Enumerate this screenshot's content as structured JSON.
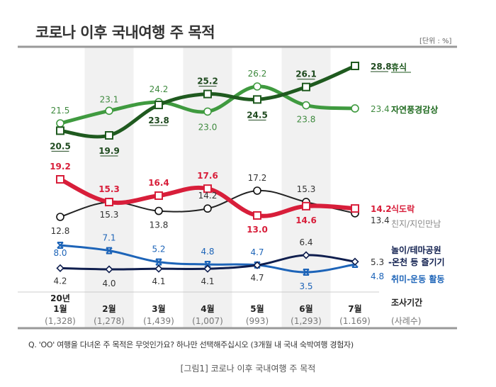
{
  "title": "코로나 이후 국내여행 주 목적",
  "unit": "[단위 : %]",
  "question": "Q. 'OO' 여행을 다녀온 주 목적은 무엇인가요? 하나만 선택해주십시오 (3개월 내 국내 숙박여행 경험자)",
  "caption": "[그림1] 코로나 이후 국내여행 주 목적",
  "colors": {
    "rest": "#1f5a1f",
    "nature": "#3f9a3f",
    "food": "#d81e3a",
    "friends": "#222222",
    "themepark": "#0f1e4e",
    "hobby": "#1d64b8",
    "shade": "#f1f1f1"
  },
  "chart_data": {
    "type": "line",
    "title": "코로나 이후 국내여행 주 목적",
    "ylabel": "%",
    "categories": [
      "20년\n1월",
      "2월",
      "3월",
      "4월",
      "5월",
      "6월",
      "7월"
    ],
    "category_labels": [
      {
        "top": "20년",
        "bottom": "1월"
      },
      {
        "top": "",
        "bottom": "2월"
      },
      {
        "top": "",
        "bottom": "3월"
      },
      {
        "top": "",
        "bottom": "4월"
      },
      {
        "top": "",
        "bottom": "5월"
      },
      {
        "top": "",
        "bottom": "6월"
      },
      {
        "top": "",
        "bottom": "7월"
      }
    ],
    "sample_sizes": [
      "(1,328)",
      "(1,278)",
      "(1,439)",
      "(1,007)",
      "(993)",
      "(1,293)",
      "(1.169)"
    ],
    "axis_title": "조사기간",
    "sample_title": "(사례수)",
    "series": [
      {
        "key": "rest",
        "name": "휴식",
        "marker": "square",
        "values": [
          20.5,
          19.9,
          23.8,
          25.2,
          24.5,
          26.1,
          28.8
        ],
        "label_style": "underline"
      },
      {
        "key": "nature",
        "name": "자연풍경감상",
        "marker": "circle",
        "values": [
          21.5,
          23.1,
          24.2,
          23.0,
          26.2,
          23.8,
          23.4
        ]
      },
      {
        "key": "food",
        "name": "식도락",
        "marker": "square",
        "values": [
          19.2,
          15.3,
          16.4,
          17.6,
          13.0,
          14.6,
          14.2
        ]
      },
      {
        "key": "friends",
        "name": "친지/지인만남",
        "marker": "circle",
        "values": [
          12.8,
          15.3,
          13.8,
          14.2,
          17.2,
          15.3,
          13.4
        ]
      },
      {
        "key": "themepark",
        "name": "놀이/테마공원\n-온천 등 즐기기",
        "marker": "diamond",
        "values": [
          4.2,
          4.0,
          4.1,
          4.1,
          4.7,
          6.4,
          5.3
        ]
      },
      {
        "key": "hobby",
        "name": "취미-운동 활동",
        "marker": "x",
        "values": [
          8.0,
          7.1,
          5.2,
          4.8,
          4.7,
          3.5,
          4.8
        ]
      }
    ],
    "legend": "right",
    "grid": false
  }
}
